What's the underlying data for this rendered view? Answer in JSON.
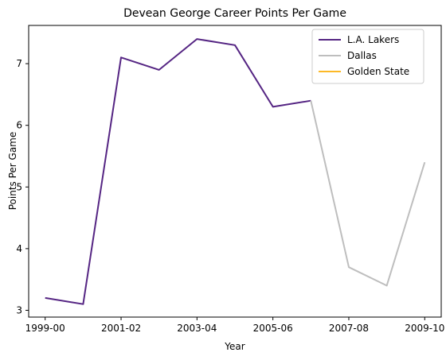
{
  "chart_data": {
    "type": "line",
    "title": "Devean George Career Points Per Game",
    "xlabel": "Year",
    "ylabel": "Points Per Game",
    "x": [
      "1999-00",
      "2000-01",
      "2001-02",
      "2002-03",
      "2003-04",
      "2004-05",
      "2005-06",
      "2006-07",
      "2007-08",
      "2008-09",
      "2009-10"
    ],
    "x_tick_labels": [
      "1999-00",
      "2001-02",
      "2003-04",
      "2005-06",
      "2007-08",
      "2009-10"
    ],
    "ylim": [
      2.89,
      7.62
    ],
    "y_ticks": [
      3,
      4,
      5,
      6,
      7
    ],
    "grid": false,
    "legend_position": "top-right",
    "series": [
      {
        "name": "L.A. Lakers",
        "color": "#552583",
        "x": [
          "1999-00",
          "2000-01",
          "2001-02",
          "2002-03",
          "2003-04",
          "2004-05",
          "2005-06",
          "2006-07"
        ],
        "values": [
          3.2,
          3.1,
          7.1,
          6.9,
          7.4,
          7.3,
          6.3,
          6.4
        ]
      },
      {
        "name": "Dallas",
        "color": "#BEBEBE",
        "x": [
          "2006-07",
          "2007-08",
          "2008-09",
          "2009-10"
        ],
        "values": [
          6.4,
          3.7,
          3.4,
          5.4
        ]
      },
      {
        "name": "Golden State",
        "color": "#FDB927",
        "x": [],
        "values": []
      }
    ]
  }
}
